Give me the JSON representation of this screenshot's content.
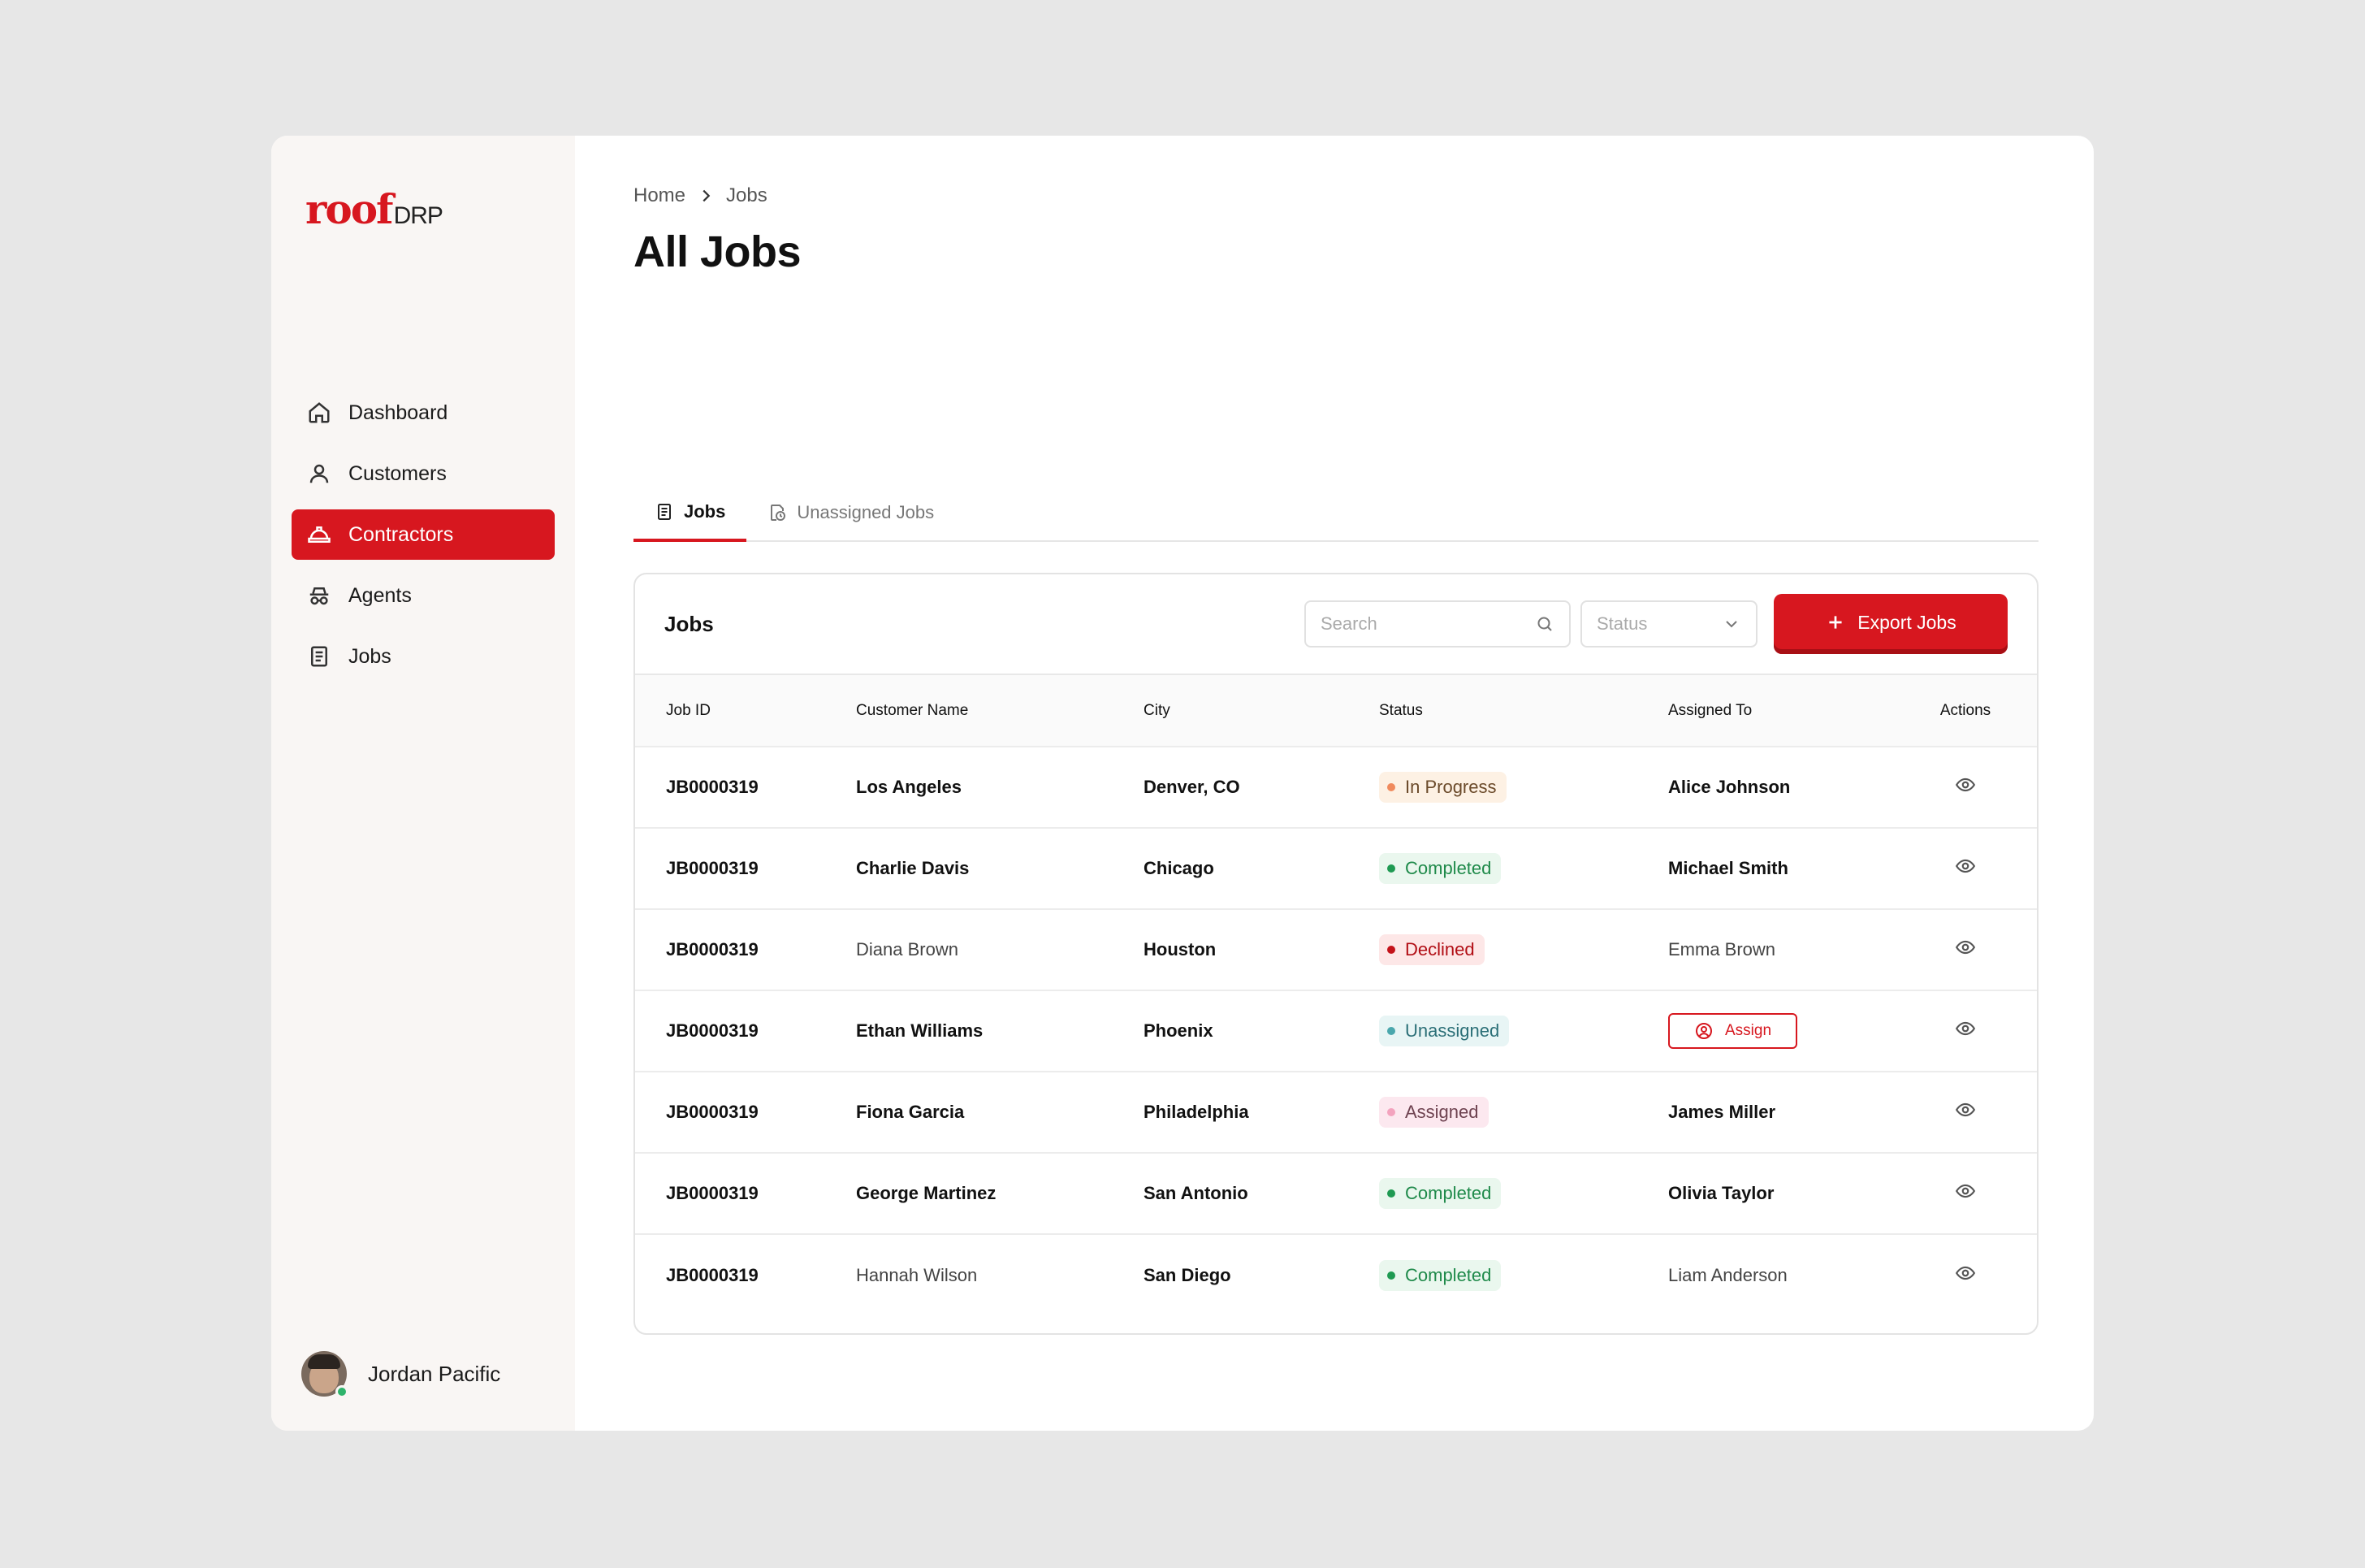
{
  "brand": {
    "logo_main": "roof",
    "logo_sub": "DRP",
    "accent": "#d7171f"
  },
  "sidebar": {
    "items": [
      {
        "label": "Dashboard",
        "icon": "home-icon"
      },
      {
        "label": "Customers",
        "icon": "user-icon"
      },
      {
        "label": "Contractors",
        "icon": "hardhat-icon",
        "active": true
      },
      {
        "label": "Agents",
        "icon": "agent-icon"
      },
      {
        "label": "Jobs",
        "icon": "document-icon"
      }
    ],
    "user": {
      "name": "Jordan Pacific",
      "status": "online"
    }
  },
  "breadcrumb": [
    "Home",
    "Jobs"
  ],
  "page_title": "All Jobs",
  "tabs": [
    {
      "label": "Jobs",
      "icon": "document-icon",
      "active": true
    },
    {
      "label": "Unassigned Jobs",
      "icon": "document-clock-icon",
      "active": false
    }
  ],
  "card": {
    "title": "Jobs",
    "search_placeholder": "Search",
    "status_placeholder": "Status",
    "export_label": "Export Jobs"
  },
  "table": {
    "columns": [
      "Job ID",
      "Customer Name",
      "City",
      "Status",
      "Assigned To",
      "Actions"
    ],
    "rows": [
      {
        "job_id": "JB0000319",
        "customer": "Los Angeles",
        "city": "Denver, CO",
        "status": "In Progress",
        "status_key": "progress",
        "assigned": "Alice Johnson"
      },
      {
        "job_id": "JB0000319",
        "customer": "Charlie Davis",
        "city": "Chicago",
        "status": "Completed",
        "status_key": "completed",
        "assigned": "Michael Smith"
      },
      {
        "job_id": "JB0000319",
        "customer": "Diana Brown",
        "city": "Houston",
        "status": "Declined",
        "status_key": "declined",
        "assigned": "Emma Brown"
      },
      {
        "job_id": "JB0000319",
        "customer": "Ethan Williams",
        "city": "Phoenix",
        "status": "Unassigned",
        "status_key": "unassigned",
        "assigned": "Assign",
        "assign_button": true
      },
      {
        "job_id": "JB0000319",
        "customer": "Fiona Garcia",
        "city": "Philadelphia",
        "status": "Assigned",
        "status_key": "assigned",
        "assigned": "James Miller"
      },
      {
        "job_id": "JB0000319",
        "customer": "George Martinez",
        "city": "San Antonio",
        "status": "Completed",
        "status_key": "completed",
        "assigned": "Olivia Taylor"
      },
      {
        "job_id": "JB0000319",
        "customer": "Hannah Wilson",
        "city": "San Diego",
        "status": "Completed",
        "status_key": "completed",
        "assigned": "Liam Anderson"
      }
    ]
  }
}
